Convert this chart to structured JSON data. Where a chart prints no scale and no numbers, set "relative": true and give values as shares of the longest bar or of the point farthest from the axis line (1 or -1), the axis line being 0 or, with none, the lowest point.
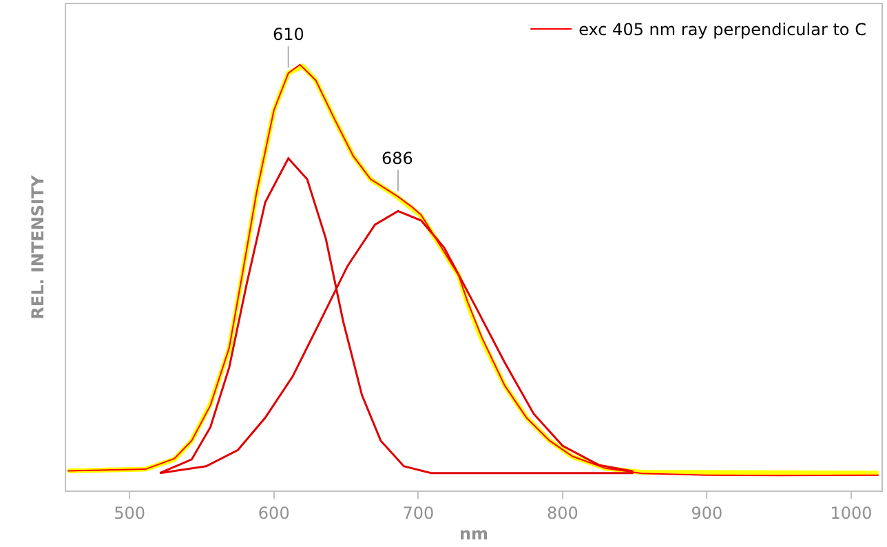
{
  "chart_data": {
    "type": "line",
    "xlabel": "nm",
    "ylabel": "REL. INTENSITY",
    "relative": true,
    "xlim": [
      456,
      1021
    ],
    "xticks": [
      500,
      600,
      700,
      800,
      900,
      1000
    ],
    "legend": "top right",
    "marker": "none",
    "line_style": "solid",
    "series": [
      {
        "name": "exc 405 nm ray perpendicular to C",
        "color": "#ff0000",
        "x": [
          457,
          511,
          531,
          543,
          556,
          569,
          578,
          588,
          600,
          610,
          618,
          629,
          642,
          655,
          667,
          686,
          696,
          702,
          718,
          728,
          734,
          744,
          760,
          775,
          791,
          807,
          830,
          855,
          900,
          950,
          1019
        ],
        "values": [
          0.046,
          0.05,
          0.075,
          0.117,
          0.2,
          0.335,
          0.505,
          0.7,
          0.893,
          0.98,
          1.0,
          0.963,
          0.872,
          0.785,
          0.731,
          0.69,
          0.665,
          0.647,
          0.56,
          0.505,
          0.445,
          0.36,
          0.246,
          0.171,
          0.117,
          0.08,
          0.052,
          0.04,
          0.036,
          0.035,
          0.036
        ]
      },
      {
        "color": "#ffff00",
        "x": [
          457,
          511,
          531,
          543,
          556,
          569,
          578,
          588,
          600,
          610,
          620,
          629,
          642,
          655,
          667,
          686,
          696,
          702,
          718,
          728,
          734,
          744,
          760,
          775,
          791,
          807,
          830,
          855,
          1019
        ],
        "values": [
          0.046,
          0.05,
          0.073,
          0.117,
          0.203,
          0.332,
          0.505,
          0.699,
          0.893,
          0.98,
          0.996,
          0.963,
          0.872,
          0.785,
          0.731,
          0.688,
          0.661,
          0.645,
          0.559,
          0.505,
          0.44,
          0.354,
          0.246,
          0.171,
          0.117,
          0.079,
          0.052,
          0.043,
          0.041
        ]
      },
      {
        "color": "#e00000",
        "x": [
          521,
          543,
          556,
          569,
          581,
          594,
          610,
          623,
          636,
          648,
          661,
          674,
          690,
          709,
          849
        ],
        "values": [
          0.041,
          0.073,
          0.149,
          0.289,
          0.483,
          0.677,
          0.78,
          0.731,
          0.591,
          0.397,
          0.224,
          0.117,
          0.057,
          0.041,
          0.041
        ]
      },
      {
        "color": "#e00000",
        "x": [
          521,
          553,
          575,
          594,
          613,
          632,
          651,
          670,
          686,
          702,
          718,
          740,
          760,
          780,
          800,
          825,
          849
        ],
        "values": [
          0.041,
          0.057,
          0.095,
          0.171,
          0.268,
          0.397,
          0.527,
          0.624,
          0.656,
          0.634,
          0.57,
          0.43,
          0.3,
          0.18,
          0.105,
          0.06,
          0.045
        ]
      }
    ],
    "annotations": [
      {
        "text": "610",
        "x": 610,
        "y": 0.98
      },
      {
        "text": "686",
        "x": 686,
        "y": 0.69
      }
    ]
  }
}
